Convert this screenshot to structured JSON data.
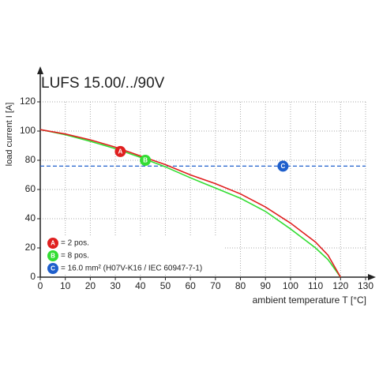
{
  "chart_data": {
    "type": "line",
    "title": "LUFS 15.00/../90V",
    "y_label": "load current I [A]",
    "x_label": "ambient temperature T [°C]",
    "x": [
      0,
      10,
      20,
      30,
      40,
      50,
      60,
      70,
      80,
      90,
      100,
      110,
      115,
      120
    ],
    "series": [
      {
        "name": "= 2 pos.",
        "badge": "A",
        "color": "#e02020",
        "marker_x": 32,
        "marker_y": 86,
        "values": [
          101,
          98,
          94,
          89,
          83,
          77,
          70,
          64,
          57,
          48,
          37,
          24,
          15,
          0
        ]
      },
      {
        "name": "= 8 pos.",
        "badge": "B",
        "color": "#33dd33",
        "marker_x": 42,
        "marker_y": 80,
        "values": [
          101,
          97.5,
          93,
          88,
          82,
          75.5,
          68,
          61,
          54,
          45,
          33,
          20,
          12,
          0
        ]
      }
    ],
    "reference_line": {
      "name": "= 16.0 mm² (H07V-K16 / IEC 60947-7-1)",
      "badge": "C",
      "color": "#1f5fcc",
      "value": 76,
      "marker_x": 97
    },
    "xlim": [
      0,
      130
    ],
    "xticks": [
      0,
      10,
      20,
      30,
      40,
      50,
      60,
      70,
      80,
      90,
      100,
      110,
      120,
      130
    ],
    "ylim": [
      0,
      120
    ],
    "yticks": [
      0,
      20,
      40,
      60,
      80,
      100,
      120
    ],
    "grid": true
  }
}
